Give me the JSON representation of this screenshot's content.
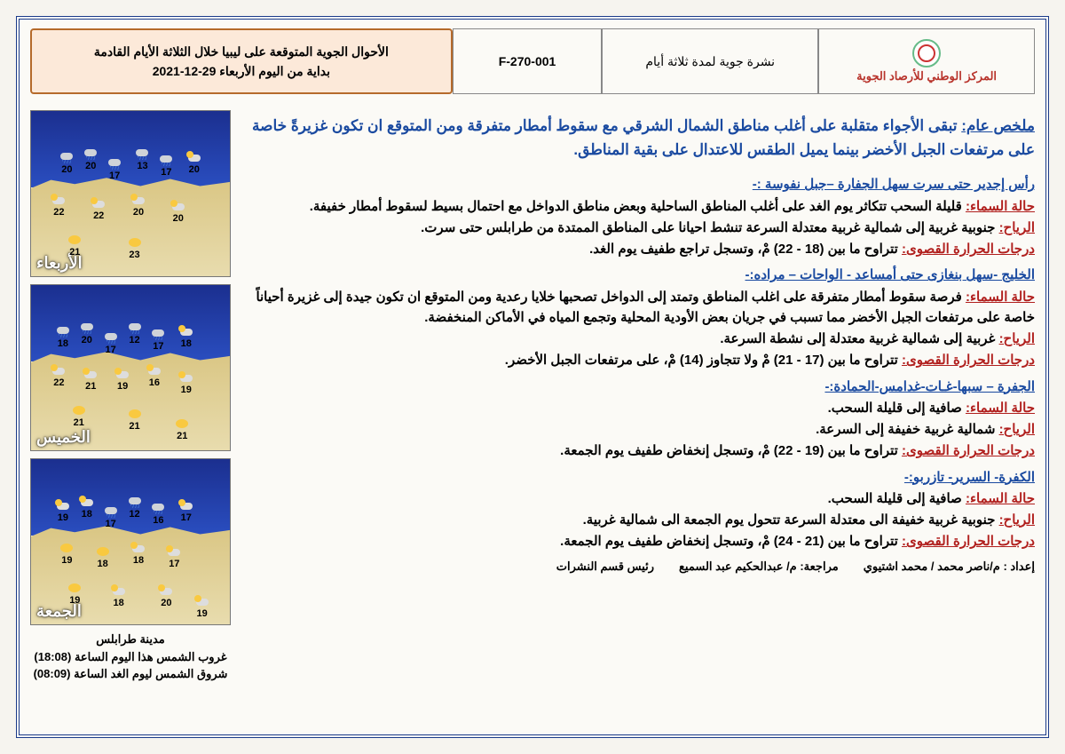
{
  "colors": {
    "frame": "#1b3a8a",
    "title_bg": "#fce9d9",
    "title_border": "#b56a2b",
    "org_text": "#b8332b",
    "blue_text": "#1a4aa0",
    "red_key": "#b1201e",
    "sea_top": "#1b2f8f",
    "sea_bottom": "#2a4ec0",
    "land_top": "#d9c582",
    "land_bottom": "#e8dcae"
  },
  "header": {
    "title_line1": "الأحوال الجوية المتوقعة على ليبيا خلال الثلاثة الأيام القادمة",
    "title_line2": "بداية من اليوم الأربعاء 29-12-2021",
    "code": "F-270-001",
    "subtitle": "نشرة جوية لمدة ثلاثة أيام",
    "org": "المركز الوطني للأرصاد الجوية"
  },
  "summary": {
    "label": "ملخص عام:",
    "text": "تبقى الأجواء متقلبة على أغلب مناطق الشمال الشرقي مع سقوط أمطار متفرقة ومن المتوقع ان تكون غزيرةً خاصة على مرتفعات الجبل الأخضر بينما يميل الطقس للاعتدال على بقية المناطق."
  },
  "keys": {
    "sky": "حالة السماء:",
    "wind": "الرياح:",
    "temp": "درجات الحرارة القصوى:"
  },
  "regions": [
    {
      "title": "رأس إجدير حتى سرت سهل الجفارة –جبل نفوسة :-",
      "sky": "قليلة السحب تتكاثر يوم الغد على أغلب المناطق الساحلية وبعض مناطق الدواخل مع احتمال بسيط لسقوط أمطار خفيفة.",
      "wind": "جنوبية غربية إلى شمالية غربية معتدلة السرعة تنشط احيانا على المناطق الممتدة من طرابلس حتى سرت.",
      "temp": "تتراوح ما بين (18 - 22) مْ، وتسجل تراجع طفيف يوم الغد."
    },
    {
      "title": "الخليج -سهل بنغازى حتى أمساعد - الواحات – مراده:-",
      "sky": "فرصة سقوط أمطار متفرقة على اغلب المناطق وتمتد إلى الدواخل تصحبها خلايا رعدية ومن المتوقع ان تكون جيدة إلى غزيرة أحياناً خاصة على مرتفعات الجبل الأخضر مما تسبب في جريان بعض الأودية المحلية وتجمع المياه في الأماكن المنخفضة.",
      "wind": "غربية إلى شمالية غربية معتدلة إلى نشطة السرعة.",
      "temp": "تتراوح ما بين (17 - 21) مْ ولا تتجاوز (14) مْ، على مرتفعات الجبل الأخضر."
    },
    {
      "title": "الجفرة – سبها-غـات-غدامس-الحمادة:-",
      "sky": "صافية إلى قليلة السحب.",
      "wind": "شمالية غربية خفيفة إلى السرعة.",
      "temp": "تتراوح ما بين (19 - 22) مْ، وتسجل إنخفاض طفيف يوم الجمعة."
    },
    {
      "title": "الكفرة- السرير- تازربو:-",
      "sky": "صافية إلى قليلة السحب.",
      "wind": "جنوبية غربية خفيفة الى معتدلة السرعة تتحول يوم الجمعة الى شمالية غربية.",
      "temp": "تتراوح ما بين (21 - 24) مْ، وتسجل إنخفاض طفيف يوم الجمعة."
    }
  ],
  "footer": {
    "prepared": "إعداد : م/ناصر محمد / محمد اشتيوي",
    "reviewed": "مراجعة: م/ عبدالحكيم عبد السميع",
    "head": "رئيس قسم النشرات"
  },
  "sunbox": {
    "city": "مدينة طرابلس",
    "sunset": "غروب الشمس هذا اليوم الساعة (18:08)",
    "sunrise": "شروق الشمس ليوم الغد الساعة (08:09)"
  },
  "maps": [
    {
      "day": "الأربعاء",
      "points": [
        {
          "x": 14,
          "y": 24,
          "v": 20,
          "k": "rain"
        },
        {
          "x": 26,
          "y": 22,
          "v": 20,
          "k": "rain"
        },
        {
          "x": 38,
          "y": 28,
          "v": 17,
          "k": "rain"
        },
        {
          "x": 52,
          "y": 22,
          "v": 13,
          "k": "rain"
        },
        {
          "x": 64,
          "y": 26,
          "v": 17,
          "k": "rain"
        },
        {
          "x": 78,
          "y": 24,
          "v": 20,
          "k": "cld"
        },
        {
          "x": 10,
          "y": 50,
          "v": 22,
          "k": "cld"
        },
        {
          "x": 30,
          "y": 52,
          "v": 22,
          "k": "cld"
        },
        {
          "x": 50,
          "y": 50,
          "v": 20,
          "k": "cld"
        },
        {
          "x": 70,
          "y": 54,
          "v": 20,
          "k": "cld"
        },
        {
          "x": 18,
          "y": 74,
          "v": 21,
          "k": "sun"
        },
        {
          "x": 48,
          "y": 76,
          "v": 23,
          "k": "sun"
        }
      ]
    },
    {
      "day": "الخميس",
      "points": [
        {
          "x": 12,
          "y": 24,
          "v": 18,
          "k": "rain"
        },
        {
          "x": 24,
          "y": 22,
          "v": 20,
          "k": "rain"
        },
        {
          "x": 36,
          "y": 28,
          "v": 17,
          "k": "rain"
        },
        {
          "x": 48,
          "y": 22,
          "v": 12,
          "k": "rain"
        },
        {
          "x": 60,
          "y": 26,
          "v": 17,
          "k": "rain"
        },
        {
          "x": 74,
          "y": 24,
          "v": 18,
          "k": "cld"
        },
        {
          "x": 10,
          "y": 48,
          "v": 22,
          "k": "cld"
        },
        {
          "x": 26,
          "y": 50,
          "v": 21,
          "k": "cld"
        },
        {
          "x": 42,
          "y": 50,
          "v": 19,
          "k": "cld"
        },
        {
          "x": 58,
          "y": 48,
          "v": 16,
          "k": "cld"
        },
        {
          "x": 74,
          "y": 52,
          "v": 19,
          "k": "cld"
        },
        {
          "x": 20,
          "y": 72,
          "v": 21,
          "k": "sun"
        },
        {
          "x": 48,
          "y": 74,
          "v": 21,
          "k": "sun"
        },
        {
          "x": 72,
          "y": 80,
          "v": 21,
          "k": "sun"
        }
      ]
    },
    {
      "day": "الجمعة",
      "points": [
        {
          "x": 12,
          "y": 24,
          "v": 19,
          "k": "cld"
        },
        {
          "x": 24,
          "y": 22,
          "v": 18,
          "k": "cld"
        },
        {
          "x": 36,
          "y": 28,
          "v": 17,
          "k": "rain"
        },
        {
          "x": 48,
          "y": 22,
          "v": 12,
          "k": "rain"
        },
        {
          "x": 60,
          "y": 26,
          "v": 16,
          "k": "rain"
        },
        {
          "x": 74,
          "y": 24,
          "v": 17,
          "k": "cld"
        },
        {
          "x": 14,
          "y": 50,
          "v": 19,
          "k": "sun"
        },
        {
          "x": 32,
          "y": 52,
          "v": 18,
          "k": "sun"
        },
        {
          "x": 50,
          "y": 50,
          "v": 18,
          "k": "cld"
        },
        {
          "x": 68,
          "y": 52,
          "v": 17,
          "k": "cld"
        },
        {
          "x": 18,
          "y": 74,
          "v": 19,
          "k": "sun"
        },
        {
          "x": 40,
          "y": 76,
          "v": 18,
          "k": "cld"
        },
        {
          "x": 64,
          "y": 76,
          "v": 20,
          "k": "cld"
        },
        {
          "x": 82,
          "y": 82,
          "v": 19,
          "k": "cld"
        }
      ]
    }
  ]
}
